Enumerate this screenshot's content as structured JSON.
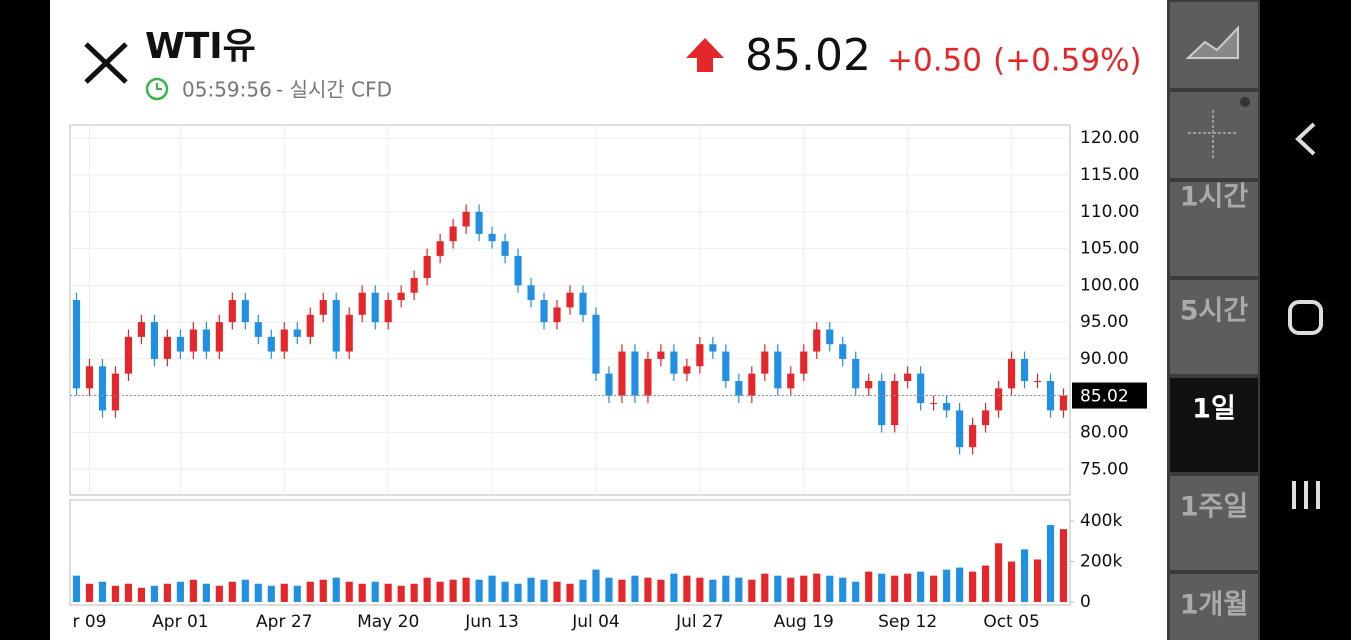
{
  "header": {
    "title": "WTI유",
    "time": "05:59:56",
    "source": "- 실시간 CFD",
    "price": "85.02",
    "change": "+0.50",
    "change_pct": "(+0.59%)"
  },
  "sidebar": {
    "ranges": [
      "1시간",
      "5시간",
      "1일",
      "1주일",
      "1개월"
    ],
    "selected": "1일"
  },
  "chart_data": {
    "type": "candlestick",
    "up_color": "#e5262a",
    "down_color": "#2190e3",
    "open": [
      98,
      86,
      89,
      83,
      88,
      93,
      95,
      90,
      93,
      91,
      94,
      91,
      95,
      98,
      95,
      93,
      91,
      94,
      93,
      96,
      98,
      91,
      96,
      99,
      95,
      98,
      99,
      101,
      104,
      106,
      108,
      110,
      107,
      106,
      104,
      100,
      98,
      95,
      97,
      99,
      96,
      88,
      85,
      91,
      85,
      90,
      91,
      88,
      89,
      92,
      91,
      87,
      85,
      88,
      91,
      86,
      88,
      91,
      94,
      92,
      90,
      86,
      87,
      81,
      87,
      88,
      84,
      84,
      83,
      78,
      81,
      83,
      86,
      90,
      87,
      87,
      83
    ],
    "high": [
      99,
      90,
      90,
      89,
      94,
      96,
      96,
      94,
      94,
      95,
      95,
      96,
      99,
      99,
      96,
      94,
      95,
      95,
      97,
      99,
      99,
      97,
      100,
      100,
      99,
      100,
      102,
      105,
      107,
      109,
      111,
      111,
      108,
      107,
      105,
      101,
      99,
      98,
      100,
      100,
      97,
      89,
      92,
      92,
      91,
      92,
      92,
      90,
      93,
      93,
      92,
      88,
      89,
      92,
      92,
      89,
      92,
      95,
      95,
      93,
      91,
      88,
      88,
      88,
      89,
      89,
      85,
      85,
      84,
      82,
      84,
      87,
      91,
      91,
      88,
      88,
      86
    ],
    "low": [
      85,
      85,
      82,
      82,
      87,
      92,
      89,
      89,
      90,
      90,
      90,
      90,
      94,
      94,
      92,
      90,
      90,
      92,
      92,
      95,
      90,
      90,
      95,
      94,
      94,
      97,
      98,
      100,
      103,
      105,
      107,
      106,
      105,
      103,
      99,
      97,
      94,
      94,
      96,
      95,
      87,
      84,
      84,
      84,
      84,
      89,
      87,
      87,
      88,
      90,
      86,
      84,
      84,
      87,
      85,
      85,
      87,
      90,
      91,
      89,
      85,
      85,
      80,
      80,
      86,
      83,
      83,
      82,
      77,
      77,
      80,
      82,
      85,
      86,
      86,
      82,
      82
    ],
    "close": [
      86,
      89,
      83,
      88,
      93,
      95,
      90,
      93,
      91,
      94,
      91,
      95,
      98,
      95,
      93,
      91,
      94,
      93,
      96,
      98,
      91,
      96,
      99,
      95,
      98,
      99,
      101,
      104,
      106,
      108,
      110,
      107,
      106,
      104,
      100,
      98,
      95,
      97,
      99,
      96,
      88,
      85,
      91,
      85,
      90,
      91,
      88,
      89,
      92,
      91,
      87,
      85,
      88,
      91,
      86,
      88,
      91,
      94,
      92,
      90,
      86,
      87,
      81,
      87,
      88,
      84,
      84,
      83,
      78,
      81,
      83,
      86,
      90,
      87,
      87,
      83,
      85.02
    ],
    "volume": [
      130000,
      90000,
      100000,
      80000,
      90000,
      70000,
      80000,
      90000,
      100000,
      110000,
      90000,
      80000,
      100000,
      110000,
      90000,
      80000,
      90000,
      80000,
      100000,
      110000,
      120000,
      100000,
      90000,
      100000,
      90000,
      80000,
      90000,
      120000,
      100000,
      110000,
      120000,
      110000,
      130000,
      100000,
      90000,
      120000,
      110000,
      100000,
      90000,
      110000,
      160000,
      120000,
      110000,
      130000,
      120000,
      110000,
      140000,
      130000,
      120000,
      110000,
      130000,
      120000,
      110000,
      140000,
      130000,
      120000,
      130000,
      140000,
      130000,
      120000,
      100000,
      150000,
      140000,
      130000,
      140000,
      150000,
      130000,
      160000,
      170000,
      150000,
      180000,
      290000,
      200000,
      260000,
      210000,
      380000,
      360000
    ],
    "last": 85.02,
    "xlim": [
      -0.5,
      76.5
    ],
    "xticks": [
      {
        "value": 1,
        "label": "r 09"
      },
      {
        "value": 8,
        "label": "Apr 01"
      },
      {
        "value": 16,
        "label": "Apr 27"
      },
      {
        "value": 24,
        "label": "May 20"
      },
      {
        "value": 32,
        "label": "Jun 13"
      },
      {
        "value": 40,
        "label": "Jul 04"
      },
      {
        "value": 48,
        "label": "Jul 27"
      },
      {
        "value": 56,
        "label": "Aug 19"
      },
      {
        "value": 64,
        "label": "Sep 12"
      },
      {
        "value": 72,
        "label": "Oct 05"
      }
    ],
    "ylim": [
      71.5,
      121.8
    ],
    "yticks": [
      {
        "value": 75,
        "label": "75.00"
      },
      {
        "value": 80,
        "label": "80.00"
      },
      {
        "value": 85,
        "label": "85.00"
      },
      {
        "value": 90,
        "label": "90.00"
      },
      {
        "value": 95,
        "label": "95.00"
      },
      {
        "value": 100,
        "label": "100.00"
      },
      {
        "value": 105,
        "label": "105.00"
      },
      {
        "value": 110,
        "label": "110.00"
      },
      {
        "value": 115,
        "label": "115.00"
      },
      {
        "value": 120,
        "label": "120.00"
      }
    ],
    "vol_ylim": [
      -15000,
      504000
    ],
    "vol_yticks": [
      0,
      {
        "value": 200000,
        "label": "200k"
      },
      {
        "value": 400000,
        "label": "400k"
      }
    ],
    "grid": true
  }
}
